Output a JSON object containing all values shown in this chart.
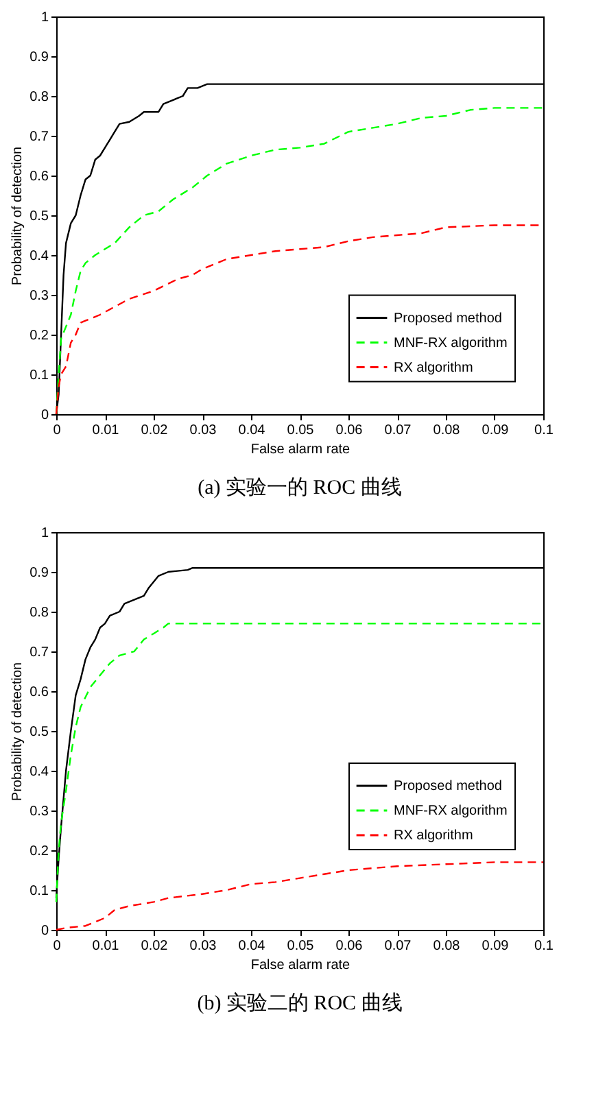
{
  "chart_data": [
    {
      "type": "line",
      "title": "(a)  实验一的 ROC 曲线",
      "xlabel": "False alarm rate",
      "ylabel": "Probability of detection",
      "xlim": [
        0,
        0.1
      ],
      "ylim": [
        0,
        1
      ],
      "xticks": [
        0,
        0.01,
        0.02,
        0.03,
        0.04,
        0.05,
        0.06,
        0.07,
        0.08,
        0.09,
        0.1
      ],
      "yticks": [
        0,
        0.1,
        0.2,
        0.3,
        0.4,
        0.5,
        0.6,
        0.7,
        0.8,
        0.9,
        1
      ],
      "grid": false,
      "legend": "bottom right",
      "marker": "none",
      "series": [
        {
          "name": "Proposed method",
          "color": "#000000",
          "line_style": "solid",
          "x": [
            0,
            0.0005,
            0.001,
            0.0015,
            0.002,
            0.003,
            0.004,
            0.005,
            0.006,
            0.007,
            0.008,
            0.009,
            0.01,
            0.011,
            0.012,
            0.013,
            0.015,
            0.017,
            0.018,
            0.021,
            0.022,
            0.024,
            0.026,
            0.027,
            0.029,
            0.031,
            0.1
          ],
          "values": [
            0,
            0.05,
            0.2,
            0.35,
            0.43,
            0.48,
            0.5,
            0.55,
            0.59,
            0.6,
            0.64,
            0.65,
            0.67,
            0.69,
            0.71,
            0.73,
            0.735,
            0.75,
            0.76,
            0.76,
            0.78,
            0.79,
            0.8,
            0.82,
            0.82,
            0.83,
            0.83
          ]
        },
        {
          "name": "MNF-RX algorithm",
          "color": "#00ff00",
          "line_style": "dashed",
          "x": [
            0,
            0.0005,
            0.001,
            0.002,
            0.003,
            0.004,
            0.005,
            0.006,
            0.008,
            0.012,
            0.015,
            0.018,
            0.021,
            0.024,
            0.028,
            0.031,
            0.035,
            0.04,
            0.045,
            0.05,
            0.055,
            0.06,
            0.065,
            0.07,
            0.075,
            0.08,
            0.085,
            0.09,
            0.1
          ],
          "values": [
            0,
            0.1,
            0.19,
            0.22,
            0.25,
            0.31,
            0.36,
            0.38,
            0.4,
            0.43,
            0.47,
            0.5,
            0.51,
            0.54,
            0.57,
            0.6,
            0.63,
            0.65,
            0.665,
            0.67,
            0.68,
            0.71,
            0.72,
            0.73,
            0.745,
            0.75,
            0.765,
            0.77,
            0.77
          ]
        },
        {
          "name": "RX algorithm",
          "color": "#ff0000",
          "line_style": "dashed",
          "x": [
            0,
            0.0005,
            0.001,
            0.002,
            0.003,
            0.004,
            0.005,
            0.006,
            0.009,
            0.012,
            0.015,
            0.02,
            0.025,
            0.028,
            0.03,
            0.035,
            0.04,
            0.045,
            0.05,
            0.055,
            0.06,
            0.065,
            0.07,
            0.075,
            0.08,
            0.09,
            0.1
          ],
          "values": [
            0,
            0.07,
            0.1,
            0.12,
            0.18,
            0.2,
            0.23,
            0.235,
            0.25,
            0.27,
            0.29,
            0.31,
            0.34,
            0.35,
            0.365,
            0.39,
            0.4,
            0.41,
            0.415,
            0.42,
            0.435,
            0.445,
            0.45,
            0.455,
            0.47,
            0.475,
            0.475
          ]
        }
      ]
    },
    {
      "type": "line",
      "title": "(b)  实验二的 ROC 曲线",
      "xlabel": "False alarm rate",
      "ylabel": "Probability of detection",
      "xlim": [
        0,
        0.1
      ],
      "ylim": [
        0,
        1
      ],
      "xticks": [
        0,
        0.01,
        0.02,
        0.03,
        0.04,
        0.05,
        0.06,
        0.07,
        0.08,
        0.09,
        0.1
      ],
      "yticks": [
        0,
        0.1,
        0.2,
        0.3,
        0.4,
        0.5,
        0.6,
        0.7,
        0.8,
        0.9,
        1
      ],
      "grid": false,
      "legend": "bottom right",
      "marker": "none",
      "series": [
        {
          "name": "Proposed method",
          "color": "#000000",
          "line_style": "solid",
          "x": [
            0,
            0.0005,
            0.001,
            0.0015,
            0.002,
            0.003,
            0.004,
            0.005,
            0.006,
            0.007,
            0.008,
            0.009,
            0.01,
            0.011,
            0.013,
            0.014,
            0.016,
            0.018,
            0.019,
            0.021,
            0.023,
            0.027,
            0.028,
            0.1
          ],
          "values": [
            0.08,
            0.18,
            0.26,
            0.33,
            0.4,
            0.5,
            0.59,
            0.63,
            0.68,
            0.71,
            0.73,
            0.76,
            0.77,
            0.79,
            0.8,
            0.82,
            0.83,
            0.84,
            0.86,
            0.89,
            0.9,
            0.905,
            0.91,
            0.91
          ]
        },
        {
          "name": "MNF-RX algorithm",
          "color": "#00ff00",
          "line_style": "dashed",
          "x": [
            0,
            0.0005,
            0.001,
            0.002,
            0.003,
            0.004,
            0.005,
            0.007,
            0.009,
            0.011,
            0.013,
            0.016,
            0.018,
            0.02,
            0.022,
            0.023,
            0.1
          ],
          "values": [
            0.07,
            0.2,
            0.27,
            0.35,
            0.44,
            0.51,
            0.56,
            0.61,
            0.64,
            0.67,
            0.69,
            0.7,
            0.73,
            0.745,
            0.76,
            0.77,
            0.77
          ]
        },
        {
          "name": "RX algorithm",
          "color": "#ff0000",
          "line_style": "dashed",
          "x": [
            0,
            0.002,
            0.006,
            0.008,
            0.01,
            0.012,
            0.015,
            0.02,
            0.023,
            0.03,
            0.035,
            0.04,
            0.045,
            0.05,
            0.055,
            0.06,
            0.065,
            0.07,
            0.08,
            0.09,
            0.1
          ],
          "values": [
            0,
            0.005,
            0.01,
            0.02,
            0.03,
            0.05,
            0.06,
            0.07,
            0.08,
            0.09,
            0.1,
            0.115,
            0.12,
            0.13,
            0.14,
            0.15,
            0.155,
            0.16,
            0.165,
            0.17,
            0.17
          ]
        }
      ]
    }
  ]
}
